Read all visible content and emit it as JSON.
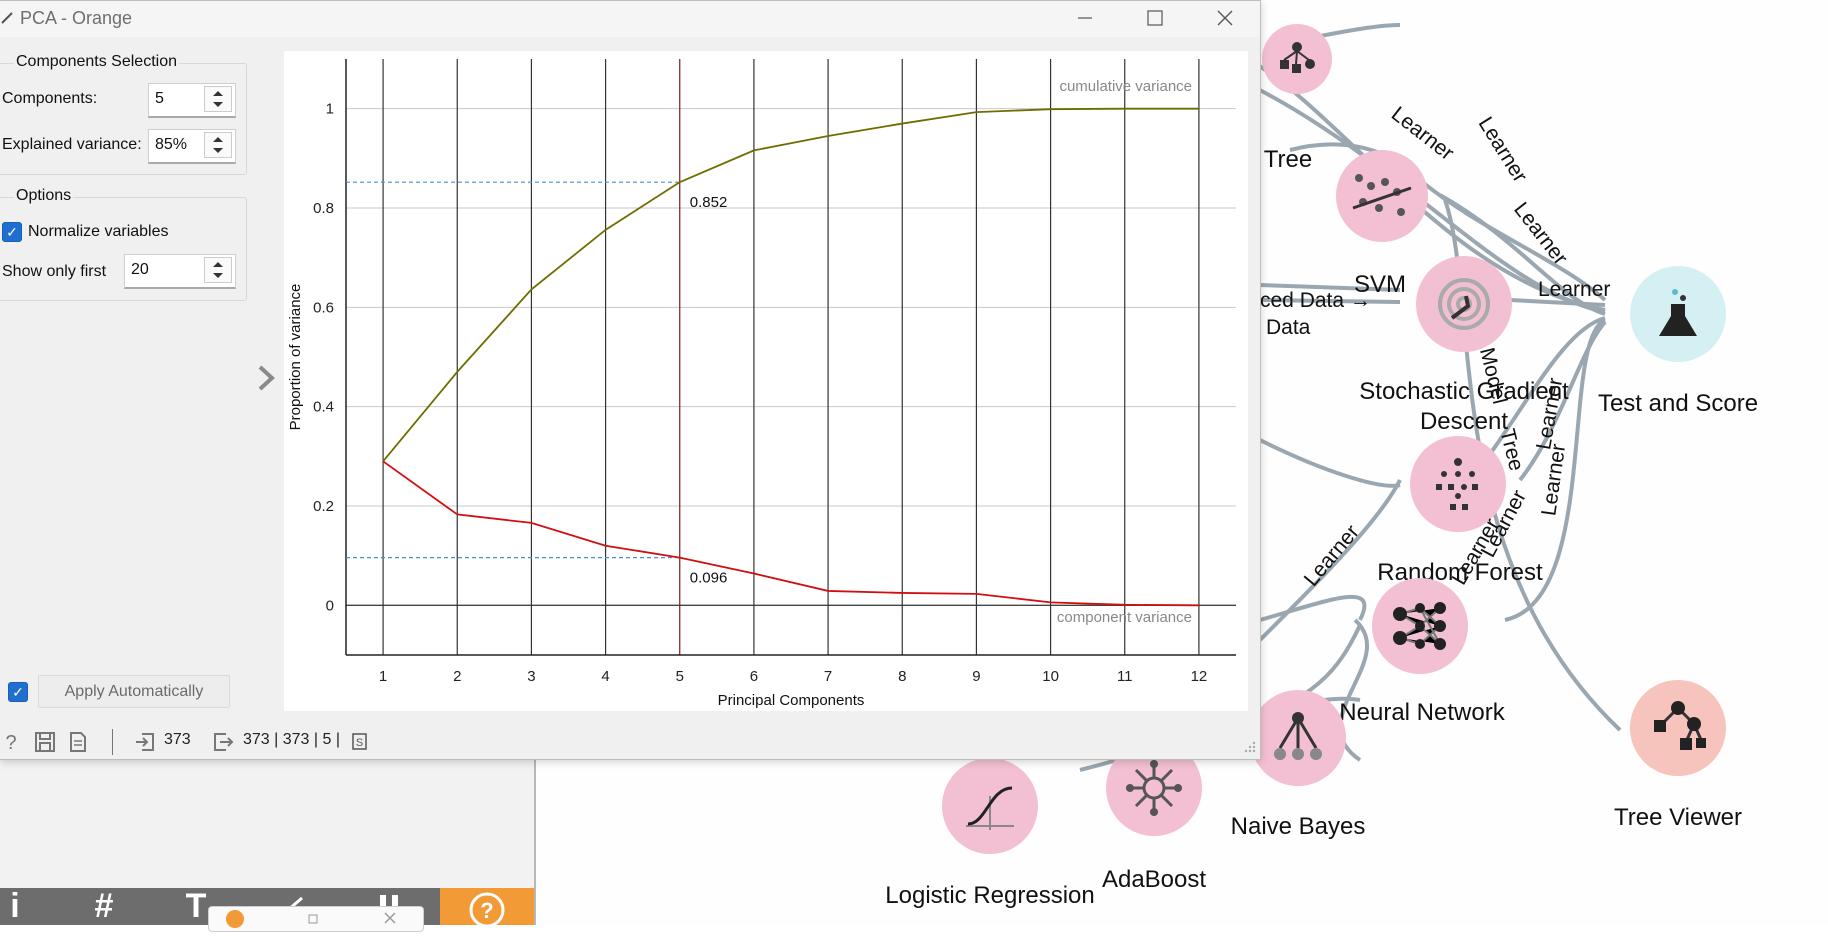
{
  "window": {
    "title": "PCA - Orange"
  },
  "components_selection": {
    "title": "Components Selection",
    "components_label": "Components:",
    "components_value": "5",
    "variance_label": "Explained variance:",
    "variance_value": "85%"
  },
  "options": {
    "title": "Options",
    "normalize_label": "Normalize variables",
    "normalize_checked": true,
    "show_first_label": "Show only first",
    "show_first_value": "20"
  },
  "apply": {
    "checked": true,
    "label": "Apply Automatically"
  },
  "status": {
    "input_count": "373",
    "output_summary": "373 | 373 | 5 |"
  },
  "chart_data": {
    "type": "line",
    "xlabel": "Principal Components",
    "ylabel": "Proportion of variance",
    "x": [
      1,
      2,
      3,
      4,
      5,
      6,
      7,
      8,
      9,
      10,
      11,
      12
    ],
    "xlim": [
      0.5,
      12.5
    ],
    "ylim": [
      -0.1,
      1.1
    ],
    "y_ticks": [
      0,
      0.2,
      0.4,
      0.6,
      0.8,
      1
    ],
    "y_tick_labels": [
      "0",
      "0.2",
      "0.4",
      "0.6",
      "0.8",
      "1"
    ],
    "grid": true,
    "selected_component": 5,
    "series": [
      {
        "name": "cumulative variance",
        "color": "#6e6e00",
        "values": [
          0.29,
          0.47,
          0.636,
          0.756,
          0.852,
          0.916,
          0.945,
          0.97,
          0.993,
          0.999,
          1.0,
          1.0
        ]
      },
      {
        "name": "component variance",
        "color": "#d01010",
        "values": [
          0.29,
          0.183,
          0.166,
          0.12,
          0.096,
          0.064,
          0.029,
          0.025,
          0.023,
          0.006,
          0.001,
          0.0
        ]
      }
    ],
    "annotations": [
      "0.852",
      "0.096"
    ]
  },
  "canvas": {
    "nodes": [
      {
        "id": "tree",
        "label": "Tree",
        "color": "#f7c6d8",
        "icon": "tree-icon"
      },
      {
        "id": "linear-regression",
        "label": "",
        "color": "#f7c6d8",
        "icon": "regression-icon"
      },
      {
        "id": "svm",
        "label": "SVM",
        "color": "#f7c6d8",
        "icon": "svm-icon"
      },
      {
        "id": "sgd",
        "label": "Stochastic Gradient Descent",
        "color": "#f7c6d8",
        "icon": "sgd-icon"
      },
      {
        "id": "random-forest",
        "label": "Random Forest",
        "color": "#f7c6d8",
        "icon": "random-forest-icon"
      },
      {
        "id": "neural-network",
        "label": "Neural Network",
        "color": "#f7c6d8",
        "icon": "neural-network-icon"
      },
      {
        "id": "naive-bayes",
        "label": "Naive Bayes",
        "color": "#f7c6d8",
        "icon": "naive-bayes-icon"
      },
      {
        "id": "adaboost",
        "label": "AdaBoost",
        "color": "#f7c6d8",
        "icon": "adaboost-icon"
      },
      {
        "id": "logistic-regression",
        "label": "Logistic Regression",
        "color": "#f7c6d8",
        "icon": "logistic-icon"
      },
      {
        "id": "test-and-score",
        "label": "Test and Score",
        "color": "#d5f0f3",
        "icon": "flask-icon"
      },
      {
        "id": "tree-viewer",
        "label": "Tree Viewer",
        "color": "#f7cfc6",
        "icon": "tree-viewer-icon"
      }
    ],
    "link_labels": {
      "learner": "Learner",
      "reduced_data": "ced Data →",
      "data": "Data",
      "model": "Model",
      "tree": "Tree"
    }
  },
  "toolbar": {
    "info": "i",
    "grid": "#",
    "text": "T"
  }
}
